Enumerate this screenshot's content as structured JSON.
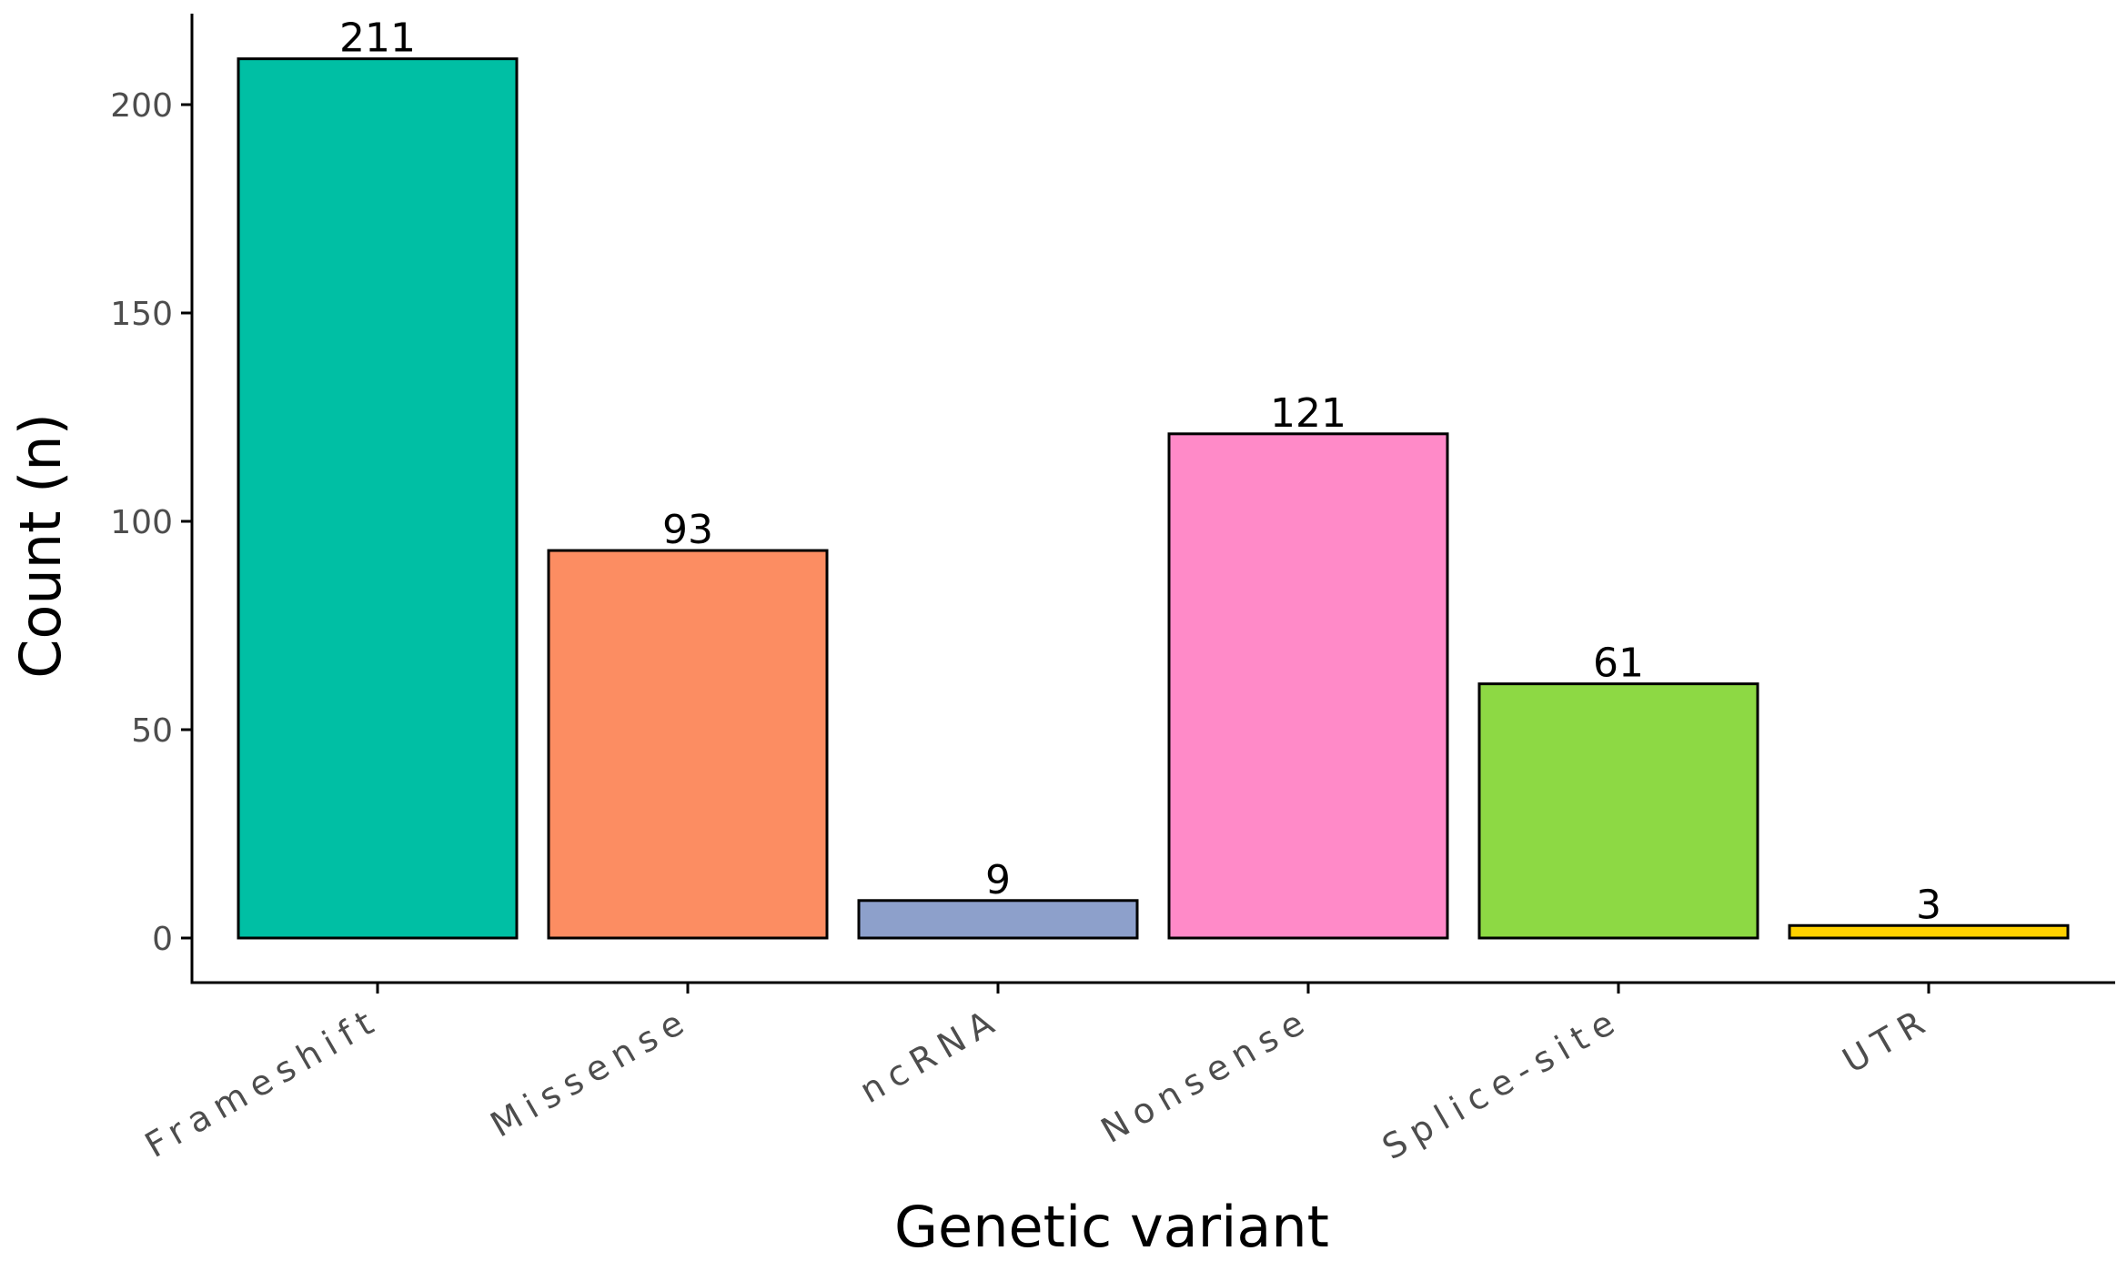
{
  "chart_data": {
    "type": "bar",
    "title": "",
    "xlabel": "Genetic variant",
    "ylabel": "Count (n)",
    "categories": [
      "Frameshift",
      "Missense",
      "ncRNA",
      "Nonsense",
      "Splice-site",
      "UTR"
    ],
    "values": [
      211,
      93,
      9,
      121,
      61,
      3
    ],
    "data_labels": [
      "211",
      "93",
      "9",
      "121",
      "61",
      "3"
    ],
    "colors": [
      "#00BFA4",
      "#FC8D62",
      "#8DA0CB",
      "#FF8AC8",
      "#8DD944",
      "#FFD100"
    ],
    "ylim": [
      0,
      220
    ],
    "yticks": [
      0,
      50,
      100,
      150,
      200
    ],
    "ytick_labels": [
      "0",
      "50",
      "100",
      "150",
      "200"
    ],
    "grid": false,
    "legend": "none"
  }
}
